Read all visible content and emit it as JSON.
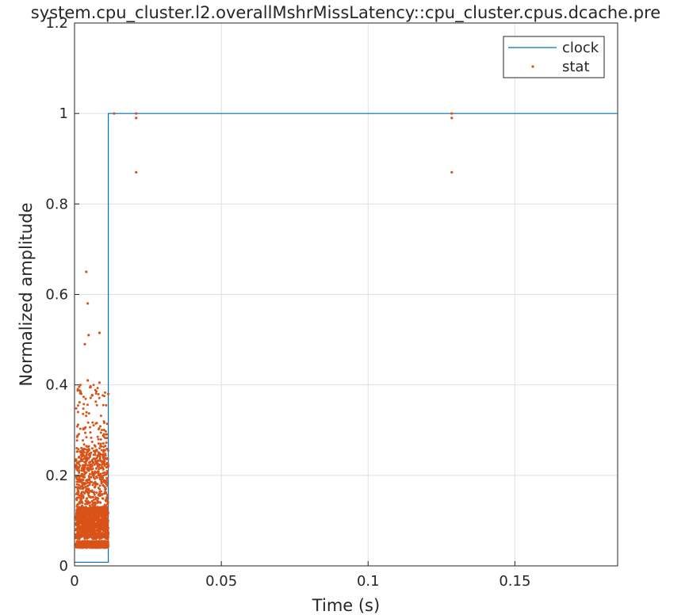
{
  "chart_data": {
    "type": "line",
    "title": "system.cpu_cluster.l2.overallMshrMissLatency::cpu_cluster.cpus.dcache.pre",
    "xlabel": "Time (s)",
    "ylabel": "Normalized amplitude",
    "xlim": [
      0,
      0.185
    ],
    "ylim": [
      0,
      1.2
    ],
    "xticks": [
      0,
      0.05,
      0.1,
      0.15
    ],
    "xtick_labels": [
      "0",
      "0.05",
      "0.1",
      "0.15"
    ],
    "yticks": [
      0,
      0.2,
      0.4,
      0.6,
      0.8,
      1,
      1.2
    ],
    "ytick_labels": [
      "0",
      "0.2",
      "0.4",
      "0.6",
      "0.8",
      "1",
      "1.2"
    ],
    "grid": true,
    "legend_position": "top-right",
    "series": [
      {
        "name": "clock",
        "style": "line",
        "color": "#0072BD",
        "x": [
          0,
          0.0115,
          0.0115,
          0.185
        ],
        "y": [
          0.008,
          0.008,
          1.0,
          1.0
        ]
      },
      {
        "name": "stat",
        "style": "markers",
        "color": "#D95319",
        "x": [
          0.004,
          0.0045,
          0.0048,
          0.0035,
          0.0085,
          0.0045,
          0.0085,
          0.0115,
          0.0135,
          0.021,
          0.021,
          0.021,
          0.1285,
          0.1285,
          0.1285
        ],
        "y": [
          0.65,
          0.58,
          0.51,
          0.49,
          0.515,
          0.41,
          0.405,
          0.38,
          1.0,
          1.0,
          0.99,
          0.87,
          1.0,
          0.99,
          0.87
        ]
      }
    ]
  }
}
